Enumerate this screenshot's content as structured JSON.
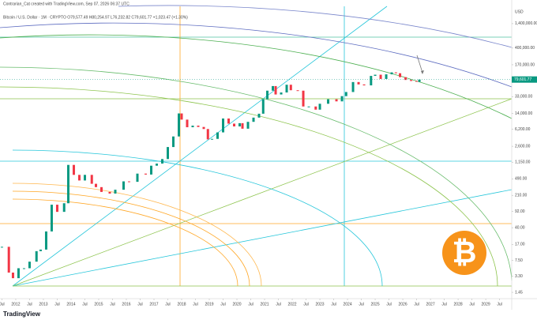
{
  "chart_data": {
    "type": "candlestick",
    "title": "Contrarian_Cat created with TradingView.com, Sep 07, 2026 06:37 UTC",
    "subtitle": "Bitcoin / U.S. Dollar · 1M · CRYPTO  O79,577.49 H80,254.97 L76,232.82 C79,601.77 +1,023.47 (+1.30%)",
    "brand": "TradingView",
    "y_unit": "USD",
    "log_scale": true,
    "grid": false,
    "up_color": "#089981",
    "down_color": "#f23645",
    "x": [
      2011.5,
      2011.75,
      2011.9,
      2012.1,
      2012.3,
      2012.5,
      2012.75,
      2012.9,
      2013.1,
      2013.3,
      2013.5,
      2013.75,
      2013.9,
      2014.1,
      2014.3,
      2014.5,
      2014.75,
      2014.9,
      2015.1,
      2015.4,
      2015.6,
      2015.9,
      2016.1,
      2016.4,
      2016.7,
      2016.9,
      2017.1,
      2017.3,
      2017.5,
      2017.7,
      2017.9,
      2018.0,
      2018.2,
      2018.4,
      2018.6,
      2018.8,
      2018.95,
      2019.1,
      2019.3,
      2019.5,
      2019.7,
      2019.9,
      2020.1,
      2020.2,
      2020.4,
      2020.6,
      2020.8,
      2020.95,
      2021.1,
      2021.3,
      2021.4,
      2021.6,
      2021.8,
      2021.95,
      2022.2,
      2022.4,
      2022.6,
      2022.85,
      2023.0,
      2023.3,
      2023.6,
      2023.8,
      2023.95,
      2024.2,
      2024.4,
      2024.6,
      2024.85,
      2025.0,
      2025.2,
      2025.4,
      2025.6,
      2025.75,
      2025.9,
      2026.1,
      2026.3,
      2026.5,
      2026.6
    ],
    "series": [
      {
        "name": "Bitcoin / U.S. Dollar",
        "values": [
          15,
          4,
          3,
          5,
          5,
          7,
          12,
          13,
          33,
          130,
          90,
          140,
          1000,
          600,
          450,
          600,
          380,
          320,
          250,
          230,
          280,
          430,
          420,
          640,
          610,
          960,
          1070,
          1350,
          2500,
          4300,
          14000,
          10200,
          6900,
          7500,
          7000,
          6300,
          3700,
          3800,
          5300,
          10800,
          8300,
          7200,
          8500,
          6400,
          9100,
          11300,
          13800,
          29000,
          45000,
          57000,
          37000,
          41000,
          61000,
          46000,
          45000,
          20000,
          20000,
          17000,
          23000,
          29000,
          26000,
          34000,
          42000,
          70000,
          62000,
          59000,
          96000,
          102000,
          82000,
          104000,
          115000,
          110000,
          90000,
          78000,
          74000,
          71000,
          79601.77
        ]
      }
    ],
    "last_price_label": "79,601.77",
    "xlim": [
      2011.43,
      2029.94
    ],
    "ylim": [
      1.05,
      3400000
    ],
    "xticks": [
      {
        "value": 2011.5,
        "label": "Jul"
      },
      {
        "value": 2012,
        "label": "2012"
      },
      {
        "value": 2012.5,
        "label": "Jul"
      },
      {
        "value": 2013,
        "label": "2013"
      },
      {
        "value": 2013.5,
        "label": "Jul"
      },
      {
        "value": 2014,
        "label": "2014"
      },
      {
        "value": 2014.5,
        "label": "Jul"
      },
      {
        "value": 2015,
        "label": "2015"
      },
      {
        "value": 2015.5,
        "label": "Jul"
      },
      {
        "value": 2016,
        "label": "2016"
      },
      {
        "value": 2016.5,
        "label": "Jul"
      },
      {
        "value": 2017,
        "label": "2017"
      },
      {
        "value": 2017.5,
        "label": "Jul"
      },
      {
        "value": 2018,
        "label": "2018"
      },
      {
        "value": 2018.5,
        "label": "Jul"
      },
      {
        "value": 2019,
        "label": "2019"
      },
      {
        "value": 2019.5,
        "label": "Jul"
      },
      {
        "value": 2020,
        "label": "2020"
      },
      {
        "value": 2020.5,
        "label": "Jul"
      },
      {
        "value": 2021,
        "label": "2021"
      },
      {
        "value": 2021.5,
        "label": "Jul"
      },
      {
        "value": 2022,
        "label": "2022"
      },
      {
        "value": 2022.5,
        "label": "Jul"
      },
      {
        "value": 2023,
        "label": "2023"
      },
      {
        "value": 2023.5,
        "label": "Jul"
      },
      {
        "value": 2024,
        "label": "2024"
      },
      {
        "value": 2024.5,
        "label": "Jul"
      },
      {
        "value": 2025,
        "label": "2025"
      },
      {
        "value": 2025.5,
        "label": "Jul"
      },
      {
        "value": 2026,
        "label": "2026"
      },
      {
        "value": 2026.5,
        "label": "Jul"
      },
      {
        "value": 2027,
        "label": "2027"
      },
      {
        "value": 2027.5,
        "label": "Jul"
      },
      {
        "value": 2028,
        "label": "2028"
      },
      {
        "value": 2028.5,
        "label": "Jul"
      },
      {
        "value": 2029,
        "label": "2029"
      },
      {
        "value": 2029.5,
        "label": "Jul"
      }
    ],
    "yticks": [
      {
        "value": 1.45,
        "label": "1.45"
      },
      {
        "value": 3.3,
        "label": "3.30"
      },
      {
        "value": 7.5,
        "label": "7.50"
      },
      {
        "value": 17,
        "label": "17.00"
      },
      {
        "value": 40,
        "label": "40.00"
      },
      {
        "value": 92,
        "label": "92.00"
      },
      {
        "value": 210,
        "label": "210.00"
      },
      {
        "value": 490,
        "label": "490.00"
      },
      {
        "value": 1150,
        "label": "1,150.00"
      },
      {
        "value": 2600,
        "label": "2,600.00"
      },
      {
        "value": 6200,
        "label": "6,200.00"
      },
      {
        "value": 14000,
        "label": "14,000.00"
      },
      {
        "value": 33000,
        "label": "33,000.00"
      },
      {
        "value": 75000,
        "label": "75,000.00"
      },
      {
        "value": 170000,
        "label": "170,000.00"
      },
      {
        "value": 400000,
        "label": "400,000.00"
      },
      {
        "value": 1400000,
        "label": "1,400,000.00"
      }
    ]
  }
}
